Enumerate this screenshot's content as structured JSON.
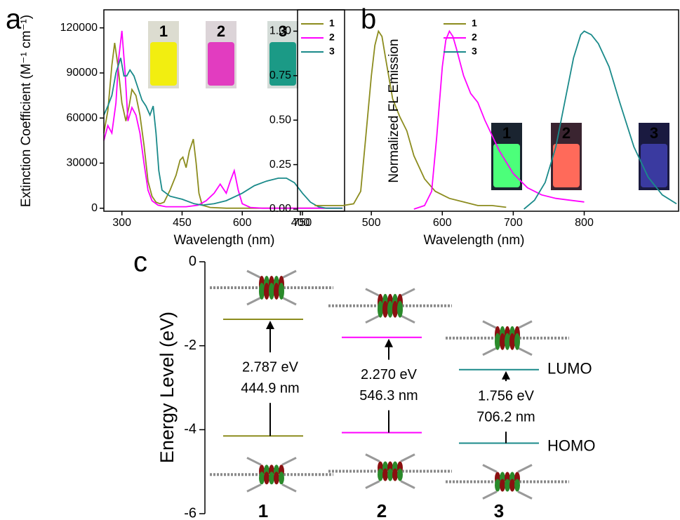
{
  "chart_data": [
    {
      "type": "line",
      "panel_label": "a",
      "xlabel": "Wavelength (nm)",
      "ylabel": "Extinction Coefficient (M⁻¹ cm⁻¹)",
      "xlim": [
        255,
        855
      ],
      "xticks": [
        300,
        450,
        600,
        750
      ],
      "ylim": [
        -2000,
        132000
      ],
      "yticks": [
        0,
        30000,
        60000,
        90000,
        120000
      ],
      "legend": "upper right",
      "series": [
        {
          "name": "1",
          "color": "#8c8c1e",
          "x": [
            255,
            265,
            275,
            282,
            290,
            300,
            310,
            318,
            325,
            335,
            345,
            355,
            365,
            375,
            385,
            395,
            405,
            420,
            435,
            445,
            452,
            460,
            468,
            478,
            485,
            492,
            500,
            520,
            560,
            650,
            750,
            850
          ],
          "values": [
            50000,
            65000,
            95000,
            110000,
            95000,
            70000,
            58000,
            68000,
            79000,
            75000,
            62000,
            42000,
            18000,
            8000,
            4000,
            3000,
            4000,
            12000,
            22000,
            32000,
            34000,
            27000,
            38000,
            46000,
            30000,
            10000,
            2000,
            500,
            0,
            0,
            0,
            0
          ]
        },
        {
          "name": "2",
          "color": "#ff00ff",
          "x": [
            255,
            265,
            275,
            285,
            292,
            300,
            308,
            315,
            325,
            335,
            345,
            355,
            365,
            375,
            390,
            410,
            430,
            460,
            490,
            510,
            530,
            545,
            560,
            570,
            580,
            590,
            600,
            620,
            650,
            700,
            850
          ],
          "values": [
            45000,
            55000,
            50000,
            70000,
            100000,
            118000,
            90000,
            58000,
            67000,
            62000,
            50000,
            30000,
            12000,
            5000,
            2000,
            1000,
            1000,
            1000,
            2000,
            5000,
            10000,
            16000,
            10000,
            18000,
            25000,
            12000,
            3000,
            500,
            0,
            0,
            0
          ]
        },
        {
          "name": "3",
          "color": "#1a8a8a",
          "x": [
            255,
            265,
            275,
            285,
            297,
            305,
            312,
            320,
            330,
            340,
            350,
            360,
            370,
            378,
            385,
            392,
            400,
            420,
            450,
            480,
            500,
            530,
            560,
            600,
            630,
            660,
            690,
            710,
            730,
            750,
            770,
            790,
            810,
            850
          ],
          "values": [
            62000,
            68000,
            75000,
            90000,
            100000,
            88000,
            88000,
            92000,
            88000,
            80000,
            72000,
            68000,
            62000,
            68000,
            50000,
            25000,
            12000,
            8000,
            6000,
            3000,
            2000,
            3000,
            5000,
            10000,
            15000,
            18000,
            20000,
            20000,
            17000,
            10000,
            4000,
            1000,
            0,
            0
          ]
        }
      ]
    },
    {
      "type": "line",
      "panel_label": "b",
      "xlabel": "Wavelength (nm)",
      "ylabel": "Normalized FL Emission",
      "xlim": [
        396,
        933
      ],
      "xticks": [
        400,
        500,
        600,
        700,
        800
      ],
      "ylim": [
        -0.012,
        1.12
      ],
      "yticks": [
        {
          "value": 0,
          "label": "0.00"
        },
        {
          "value": 0.25,
          "label": "0.25"
        },
        {
          "value": 0.5,
          "label": "0.50"
        },
        {
          "value": 0.75,
          "label": "0.75"
        },
        {
          "value": 1,
          "label": "1.00"
        }
      ],
      "legend": "upper left",
      "series": [
        {
          "name": "1",
          "color": "#8c8c1e",
          "x": [
            420,
            440,
            460,
            475,
            485,
            492,
            500,
            505,
            510,
            515,
            520,
            530,
            540,
            550,
            560,
            575,
            590,
            610,
            630,
            650,
            670,
            690
          ],
          "values": [
            0.02,
            0.02,
            0.02,
            0.03,
            0.1,
            0.4,
            0.75,
            0.92,
            1.0,
            0.97,
            0.85,
            0.62,
            0.52,
            0.44,
            0.3,
            0.17,
            0.1,
            0.06,
            0.04,
            0.02,
            0.02,
            0.01
          ]
        },
        {
          "name": "2",
          "color": "#ff00ff",
          "x": [
            560,
            575,
            585,
            592,
            600,
            605,
            610,
            615,
            620,
            630,
            640,
            650,
            660,
            680,
            700,
            720,
            740,
            760,
            780,
            800
          ],
          "values": [
            0.0,
            0.02,
            0.1,
            0.4,
            0.8,
            0.95,
            1.0,
            0.97,
            0.9,
            0.75,
            0.65,
            0.6,
            0.5,
            0.33,
            0.2,
            0.12,
            0.08,
            0.06,
            0.05,
            0.04
          ]
        },
        {
          "name": "3",
          "color": "#1a8a8a",
          "x": [
            715,
            730,
            745,
            760,
            775,
            785,
            795,
            800,
            810,
            820,
            835,
            850,
            870,
            890,
            910,
            930
          ],
          "values": [
            0.0,
            0.05,
            0.15,
            0.35,
            0.65,
            0.85,
            0.98,
            1.0,
            0.98,
            0.93,
            0.8,
            0.6,
            0.35,
            0.18,
            0.08,
            0.03
          ]
        }
      ]
    },
    {
      "type": "energy_diagram",
      "panel_label": "c",
      "ylabel": "Energy Level (eV)",
      "ylim": [
        -6,
        0
      ],
      "yticks": [
        -6,
        -4,
        -2,
        0
      ],
      "categories": [
        "1",
        "2",
        "3"
      ],
      "colors": [
        "#8c8c1e",
        "#ff00ff",
        "#1a8a8a"
      ],
      "series": [
        {
          "name": "LUMO",
          "values": [
            -1.37,
            -1.8,
            -2.57
          ]
        },
        {
          "name": "HOMO",
          "values": [
            -4.15,
            -4.07,
            -4.32
          ]
        }
      ],
      "annotations": [
        [
          "2.787 eV",
          "444.9 nm"
        ],
        [
          "2.270 eV",
          "546.3 nm"
        ],
        [
          "1.756 eV",
          "706.2 nm"
        ]
      ]
    }
  ]
}
